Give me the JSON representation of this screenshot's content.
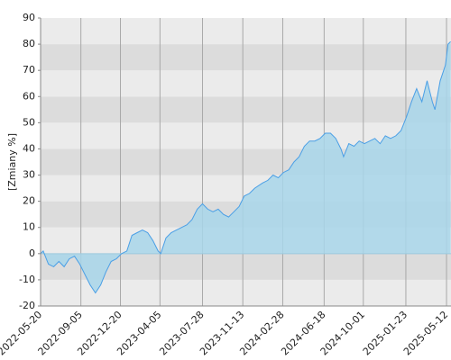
{
  "chart_data": {
    "type": "line",
    "y_label": "[Zmiany %]",
    "line_color": "#4a9fe6",
    "area_color": "#a8d6ea",
    "band_colors": [
      "#ebebeb",
      "#dcdcdc"
    ],
    "grid": true,
    "x": [
      "2022-05-20",
      "2022-05-27",
      "2022-06-10",
      "2022-06-24",
      "2022-07-08",
      "2022-07-22",
      "2022-08-05",
      "2022-08-19",
      "2022-09-02",
      "2022-09-16",
      "2022-09-30",
      "2022-10-14",
      "2022-10-28",
      "2022-11-11",
      "2022-11-25",
      "2022-12-09",
      "2022-12-23",
      "2023-01-06",
      "2023-01-20",
      "2023-02-03",
      "2023-02-17",
      "2023-03-03",
      "2023-03-17",
      "2023-03-31",
      "2023-04-07",
      "2023-04-21",
      "2023-05-05",
      "2023-05-19",
      "2023-06-02",
      "2023-06-16",
      "2023-06-30",
      "2023-07-14",
      "2023-07-28",
      "2023-08-11",
      "2023-08-25",
      "2023-09-08",
      "2023-09-22",
      "2023-10-06",
      "2023-10-20",
      "2023-11-03",
      "2023-11-17",
      "2023-12-01",
      "2023-12-15",
      "2024-01-05",
      "2024-01-19",
      "2024-02-02",
      "2024-02-16",
      "2024-03-01",
      "2024-03-15",
      "2024-03-29",
      "2024-04-12",
      "2024-04-26",
      "2024-05-10",
      "2024-05-24",
      "2024-06-07",
      "2024-06-21",
      "2024-07-05",
      "2024-07-19",
      "2024-08-02",
      "2024-08-09",
      "2024-08-23",
      "2024-09-06",
      "2024-09-20",
      "2024-10-04",
      "2024-10-18",
      "2024-11-01",
      "2024-11-15",
      "2024-11-29",
      "2024-12-13",
      "2024-12-27",
      "2025-01-10",
      "2025-01-24",
      "2025-02-07",
      "2025-02-21",
      "2025-03-07",
      "2025-03-21",
      "2025-04-04",
      "2025-04-11",
      "2025-04-25",
      "2025-05-09",
      "2025-05-16",
      "2025-05-23"
    ],
    "values": [
      0,
      1,
      -4,
      -5,
      -3,
      -5,
      -2,
      -1,
      -4,
      -8,
      -12,
      -15,
      -12,
      -7,
      -3,
      -2,
      0,
      1,
      7,
      8,
      9,
      8,
      5,
      1,
      0,
      6,
      8,
      9,
      10,
      11,
      13,
      17,
      19,
      17,
      16,
      17,
      15,
      14,
      16,
      18,
      22,
      23,
      25,
      27,
      28,
      30,
      29,
      31,
      32,
      35,
      37,
      41,
      43,
      43,
      44,
      46,
      46,
      44,
      40,
      37,
      42,
      41,
      43,
      42,
      43,
      44,
      42,
      45,
      44,
      45,
      47,
      52,
      58,
      63,
      58,
      66,
      58,
      55,
      66,
      72,
      80,
      81
    ],
    "xlim": [
      "2022-05-20",
      "2025-05-24"
    ],
    "xticks": [
      "2022-05-20",
      "2022-09-05",
      "2022-12-20",
      "2023-04-05",
      "2023-07-28",
      "2023-11-13",
      "2024-02-28",
      "2024-06-18",
      "2024-10-01",
      "2025-01-23",
      "2025-05-12"
    ],
    "ylim": [
      -20,
      90
    ],
    "yticks": [
      -20,
      -10,
      0,
      10,
      20,
      30,
      40,
      50,
      60,
      70,
      80,
      90
    ]
  }
}
